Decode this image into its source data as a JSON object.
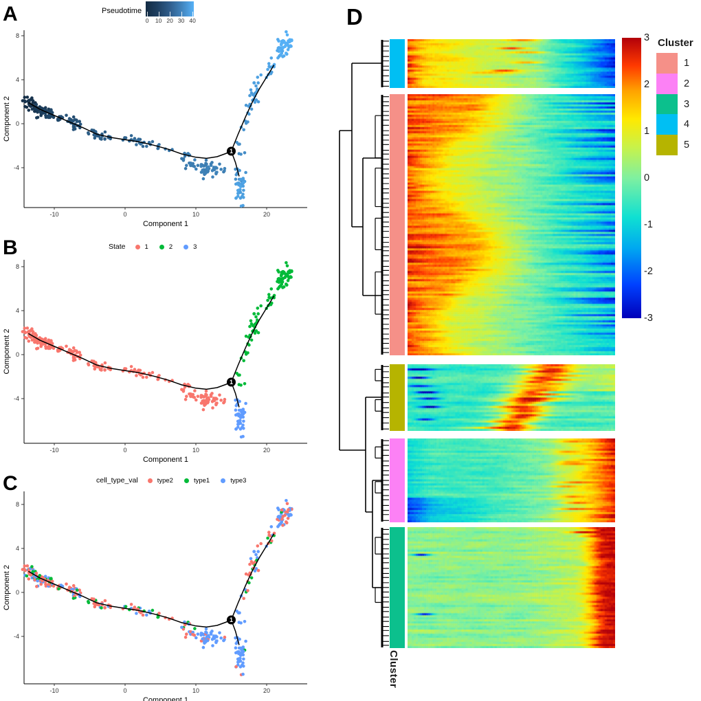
{
  "panels": {
    "A": {
      "letter": "A",
      "legend": {
        "title": "Pseudotime",
        "ticks": [
          0,
          10,
          20,
          30,
          40
        ],
        "gradient": [
          "#132B43",
          "#56B1F7"
        ]
      }
    },
    "B": {
      "letter": "B",
      "legend": {
        "title": "State",
        "items": [
          {
            "label": "1",
            "color": "#F8766D"
          },
          {
            "label": "2",
            "color": "#00BA38"
          },
          {
            "label": "3",
            "color": "#619CFF"
          }
        ]
      }
    },
    "C": {
      "letter": "C",
      "legend": {
        "title": "cell_type_val",
        "items": [
          {
            "label": "type2",
            "color": "#F8766D"
          },
          {
            "label": "type1",
            "color": "#00BA38"
          },
          {
            "label": "type3",
            "color": "#619CFF"
          }
        ]
      }
    },
    "D": {
      "letter": "D",
      "colorbar": {
        "ticks": [
          3,
          2,
          1,
          0,
          -1,
          -2,
          -3
        ],
        "top_color": "#B2000A",
        "bottom_color": "#0000B9"
      },
      "cluster_legend": {
        "title": "Cluster",
        "items": [
          {
            "label": "1",
            "color": "#F59088"
          },
          {
            "label": "2",
            "color": "#FC81F5"
          },
          {
            "label": "3",
            "color": "#0CC08D"
          },
          {
            "label": "4",
            "color": "#00BFF3"
          },
          {
            "label": "5",
            "color": "#B6B400"
          }
        ]
      },
      "bottom_label": "Cluster"
    }
  },
  "axes": {
    "x_label": "Component 1",
    "y_label": "Component 2",
    "x_ticks": [
      -10,
      0,
      10,
      20
    ],
    "y_ticks": [
      8,
      4,
      0,
      -4
    ]
  },
  "chart_data": {
    "trajectory_plots": {
      "type": "scatter",
      "x_range": [
        -14.3,
        25.6
      ],
      "y_range": [
        -7.6,
        8.4
      ],
      "branch_point": {
        "x": 15,
        "y": -2.5,
        "label": "1"
      },
      "curves": {
        "main": [
          [
            -13.6,
            1.9
          ],
          [
            -12,
            1.3
          ],
          [
            -10,
            0.75
          ],
          [
            -8,
            0.2
          ],
          [
            -6,
            -0.35
          ],
          [
            -4,
            -0.95
          ],
          [
            -2,
            -1.25
          ],
          [
            0,
            -1.45
          ],
          [
            2,
            -1.65
          ],
          [
            4,
            -1.95
          ],
          [
            6,
            -2.3
          ],
          [
            8,
            -2.75
          ],
          [
            10,
            -3.05
          ],
          [
            11.5,
            -3.15
          ],
          [
            13,
            -3.0
          ],
          [
            14.2,
            -2.72
          ],
          [
            15,
            -2.5
          ]
        ],
        "upper": [
          [
            15,
            -2.5
          ],
          [
            16,
            -0.9
          ],
          [
            17,
            0.6
          ],
          [
            18,
            2.0
          ],
          [
            19,
            3.2
          ],
          [
            20,
            4.25
          ],
          [
            21,
            5.3
          ]
        ],
        "lower": [
          [
            15,
            -2.5
          ],
          [
            15.6,
            -3.55
          ],
          [
            16.1,
            -4.75
          ]
        ]
      },
      "color_keys": {
        "states": {
          "1": "#F8766D",
          "2": "#00BA38",
          "3": "#619CFF"
        },
        "types": {
          "type2": "#F8766D",
          "type1": "#00BA38",
          "type3": "#619CFF"
        },
        "pseudotime_range": [
          0,
          43
        ]
      },
      "mixes": {
        "main": [
          0.55,
          0.2,
          0.25
        ],
        "belowblue": [
          0.08,
          0.04,
          0.88
        ],
        "upper": [
          0.5,
          0.3,
          0.2
        ],
        "top": [
          0.3,
          0.08,
          0.62
        ],
        "blue": [
          0.03,
          0.02,
          0.95
        ]
      },
      "blobs": [
        {
          "x": -13.4,
          "y": 1.85,
          "n": 26,
          "sx": 0.35,
          "sy": 0.28,
          "t": 2,
          "state": "1",
          "mix": "main"
        },
        {
          "x": -12.6,
          "y": 1.45,
          "n": 13,
          "sx": 0.3,
          "sy": 0.2,
          "t": 4,
          "state": "1",
          "mix": "main"
        },
        {
          "x": -11.6,
          "y": 1.12,
          "n": 30,
          "sx": 0.5,
          "sy": 0.3,
          "t": 6,
          "state": "1",
          "mix": "main"
        },
        {
          "x": -10.6,
          "y": 0.85,
          "n": 16,
          "sx": 0.35,
          "sy": 0.22,
          "t": 8,
          "state": "1",
          "mix": "main"
        },
        {
          "x": -9.2,
          "y": 0.5,
          "n": 7,
          "sx": 0.3,
          "sy": 0.15,
          "t": 10,
          "state": "1",
          "mix": "main"
        },
        {
          "x": -7.6,
          "y": 0.2,
          "n": 20,
          "sx": 0.4,
          "sy": 0.35,
          "t": 12,
          "state": "1",
          "mix": "main"
        },
        {
          "x": -6.7,
          "y": -0.1,
          "n": 7,
          "sx": 0.3,
          "sy": 0.2,
          "t": 13,
          "state": "1",
          "mix": "main"
        },
        {
          "x": -4.0,
          "y": -1.0,
          "n": 18,
          "sx": 0.6,
          "sy": 0.25,
          "t": 16,
          "state": "1",
          "mix": "main"
        },
        {
          "x": -2.6,
          "y": -1.25,
          "n": 9,
          "sx": 0.4,
          "sy": 0.2,
          "t": 17,
          "state": "1",
          "mix": "main"
        },
        {
          "x": 0.3,
          "y": -1.45,
          "n": 9,
          "sx": 0.7,
          "sy": 0.16,
          "t": 19,
          "state": "1",
          "mix": "main"
        },
        {
          "x": 1.9,
          "y": -1.62,
          "n": 7,
          "sx": 0.5,
          "sy": 0.15,
          "t": 20,
          "state": "1",
          "mix": "main"
        },
        {
          "x": 3.4,
          "y": -1.85,
          "n": 6,
          "sx": 0.5,
          "sy": 0.16,
          "t": 21,
          "state": "1",
          "mix": "main"
        },
        {
          "x": 4.9,
          "y": -2.1,
          "n": 4,
          "sx": 0.4,
          "sy": 0.15,
          "t": 22,
          "state": "1",
          "mix": "main"
        },
        {
          "x": 6.1,
          "y": -2.3,
          "n": 3,
          "sx": 0.3,
          "sy": 0.15,
          "t": 23,
          "state": "1",
          "mix": "main"
        },
        {
          "x": 8.3,
          "y": -3.3,
          "n": 10,
          "sx": 0.4,
          "sy": 0.4,
          "t": 25,
          "state": "1",
          "mix": "main"
        },
        {
          "x": 9.4,
          "y": -3.5,
          "n": 8,
          "sx": 0.35,
          "sy": 0.35,
          "t": 26,
          "state": "1",
          "mix": "main"
        },
        {
          "x": 11.0,
          "y": -4.05,
          "n": 26,
          "sx": 0.6,
          "sy": 0.42,
          "t": 27,
          "state": "1",
          "mix": "belowblue"
        },
        {
          "x": 12.3,
          "y": -4.1,
          "n": 13,
          "sx": 0.45,
          "sy": 0.38,
          "t": 28,
          "state": "1",
          "mix": "belowblue"
        },
        {
          "x": 13.3,
          "y": -4.05,
          "n": 7,
          "sx": 0.35,
          "sy": 0.3,
          "t": 28,
          "state": "1",
          "mix": "belowblue"
        },
        {
          "x": 16.1,
          "y": -1.7,
          "n": 3,
          "sx": 0.25,
          "sy": 0.35,
          "t": 32,
          "state": "2",
          "mix": "blue"
        },
        {
          "x": 16.7,
          "y": -2.9,
          "n": 3,
          "sx": 0.3,
          "sy": 0.3,
          "t": 31,
          "state": "2",
          "mix": "blue"
        },
        {
          "x": 17.1,
          "y": 0.1,
          "n": 5,
          "sx": 0.3,
          "sy": 0.45,
          "t": 34,
          "state": "2",
          "mix": "upper"
        },
        {
          "x": 17.6,
          "y": 1.4,
          "n": 7,
          "sx": 0.35,
          "sy": 0.4,
          "t": 35,
          "state": "2",
          "mix": "upper"
        },
        {
          "x": 18.1,
          "y": 2.6,
          "n": 10,
          "sx": 0.35,
          "sy": 0.45,
          "t": 36,
          "state": "2",
          "mix": "upper"
        },
        {
          "x": 18.7,
          "y": 3.4,
          "n": 8,
          "sx": 0.4,
          "sy": 0.35,
          "t": 37,
          "state": "2",
          "mix": "upper"
        },
        {
          "x": 19.8,
          "y": 4.4,
          "n": 6,
          "sx": 0.4,
          "sy": 0.3,
          "t": 38,
          "state": "2",
          "mix": "upper"
        },
        {
          "x": 20.9,
          "y": 5.4,
          "n": 7,
          "sx": 0.4,
          "sy": 0.35,
          "t": 39,
          "state": "2",
          "mix": "upper"
        },
        {
          "x": 21.8,
          "y": 6.4,
          "n": 12,
          "sx": 0.45,
          "sy": 0.4,
          "t": 40,
          "state": "2",
          "mix": "top"
        },
        {
          "x": 22.6,
          "y": 7.15,
          "n": 30,
          "sx": 0.5,
          "sy": 0.45,
          "t": 42,
          "state": "2",
          "mix": "top"
        },
        {
          "x": 23.2,
          "y": 7.55,
          "n": 9,
          "sx": 0.35,
          "sy": 0.3,
          "t": 43,
          "state": "2",
          "mix": "top"
        },
        {
          "x": 15.9,
          "y": -4.55,
          "n": 8,
          "sx": 0.28,
          "sy": 0.38,
          "t": 33,
          "state": "3",
          "mix": "blue"
        },
        {
          "x": 16.5,
          "y": -5.3,
          "n": 5,
          "sx": 0.3,
          "sy": 0.3,
          "t": 35,
          "state": "3",
          "mix": "blue"
        },
        {
          "x": 16.3,
          "y": -6.15,
          "n": 30,
          "sx": 0.4,
          "sy": 0.7,
          "t": 38,
          "state": "3",
          "mix": "blue"
        }
      ]
    },
    "heatmap": {
      "type": "heatmap",
      "value_range": [
        -3,
        3
      ],
      "columns": 100,
      "blocks": [
        {
          "cluster": "4",
          "color": "#00BFF3",
          "rows": 24,
          "pattern": "early_high_then_low"
        },
        {
          "cluster": "1",
          "color": "#F59088",
          "rows": 127,
          "pattern": "early_high_cascade"
        },
        {
          "cluster": "5",
          "color": "#B6B400",
          "rows": 32,
          "pattern": "mid_peak"
        },
        {
          "cluster": "2",
          "color": "#FC81F5",
          "rows": 41,
          "pattern": "late_rise"
        },
        {
          "cluster": "3",
          "color": "#0CC08D",
          "rows": 59,
          "pattern": "late_spike"
        }
      ]
    }
  }
}
